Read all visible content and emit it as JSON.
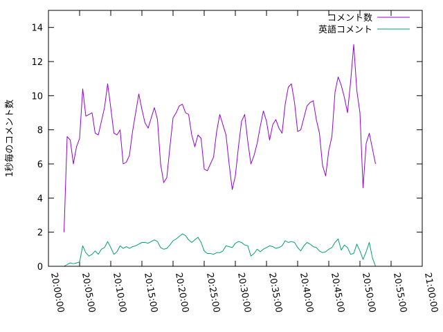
{
  "chart_data": {
    "type": "line",
    "title": "",
    "xlabel": "",
    "ylabel": "1秒毎のコメント数",
    "ylim": [
      0,
      15
    ],
    "xlim": [
      "20:00:00",
      "21:00:00"
    ],
    "yticks": [
      0,
      2,
      4,
      6,
      8,
      10,
      12,
      14
    ],
    "xticks": [
      "20:00:00",
      "20:05:00",
      "20:10:00",
      "20:15:00",
      "20:20:00",
      "20:25:00",
      "20:30:00",
      "20:35:00",
      "20:40:00",
      "20:45:00",
      "20:50:00",
      "20:55:00",
      "21:00:00"
    ],
    "grid": false,
    "legend_position": "top-right",
    "series": [
      {
        "name": "コメント数",
        "color": "#9400d3",
        "points": [
          [
            "20:02:30",
            2.0
          ],
          [
            "20:03:00",
            7.6
          ],
          [
            "20:03:30",
            7.4
          ],
          [
            "20:04:00",
            6.0
          ],
          [
            "20:04:30",
            7.0
          ],
          [
            "20:05:00",
            7.5
          ],
          [
            "20:05:30",
            10.4
          ],
          [
            "20:06:00",
            8.8
          ],
          [
            "20:06:30",
            8.9
          ],
          [
            "20:07:00",
            9.0
          ],
          [
            "20:07:30",
            7.8
          ],
          [
            "20:08:00",
            7.7
          ],
          [
            "20:08:30",
            8.5
          ],
          [
            "20:09:00",
            9.3
          ],
          [
            "20:09:30",
            10.7
          ],
          [
            "20:10:00",
            9.3
          ],
          [
            "20:10:30",
            7.8
          ],
          [
            "20:11:00",
            7.7
          ],
          [
            "20:11:30",
            8.0
          ],
          [
            "20:12:00",
            6.0
          ],
          [
            "20:12:30",
            6.1
          ],
          [
            "20:13:00",
            6.5
          ],
          [
            "20:13:30",
            7.9
          ],
          [
            "20:14:00",
            9.0
          ],
          [
            "20:14:30",
            10.1
          ],
          [
            "20:15:00",
            9.2
          ],
          [
            "20:15:30",
            8.4
          ],
          [
            "20:16:00",
            8.1
          ],
          [
            "20:16:30",
            8.7
          ],
          [
            "20:17:00",
            9.3
          ],
          [
            "20:17:30",
            8.6
          ],
          [
            "20:18:00",
            6.0
          ],
          [
            "20:18:30",
            4.9
          ],
          [
            "20:19:00",
            5.2
          ],
          [
            "20:19:30",
            7.0
          ],
          [
            "20:20:00",
            8.7
          ],
          [
            "20:20:30",
            9.0
          ],
          [
            "20:21:00",
            9.4
          ],
          [
            "20:21:30",
            9.5
          ],
          [
            "20:22:00",
            9.0
          ],
          [
            "20:22:30",
            8.9
          ],
          [
            "20:23:00",
            7.7
          ],
          [
            "20:23:30",
            7.0
          ],
          [
            "20:24:00",
            7.7
          ],
          [
            "20:24:30",
            7.5
          ],
          [
            "20:25:00",
            5.7
          ],
          [
            "20:25:30",
            5.6
          ],
          [
            "20:26:00",
            6.0
          ],
          [
            "20:26:30",
            6.4
          ],
          [
            "20:27:00",
            7.9
          ],
          [
            "20:27:30",
            8.9
          ],
          [
            "20:28:00",
            8.3
          ],
          [
            "20:28:30",
            7.7
          ],
          [
            "20:29:00",
            6.0
          ],
          [
            "20:29:30",
            4.5
          ],
          [
            "20:30:00",
            5.3
          ],
          [
            "20:30:30",
            7.0
          ],
          [
            "20:31:00",
            8.5
          ],
          [
            "20:31:30",
            8.9
          ],
          [
            "20:32:00",
            7.3
          ],
          [
            "20:32:30",
            6.0
          ],
          [
            "20:33:00",
            6.5
          ],
          [
            "20:33:30",
            7.2
          ],
          [
            "20:34:00",
            8.2
          ],
          [
            "20:34:30",
            9.1
          ],
          [
            "20:35:00",
            8.5
          ],
          [
            "20:35:30",
            7.4
          ],
          [
            "20:36:00",
            8.3
          ],
          [
            "20:36:30",
            8.6
          ],
          [
            "20:37:00",
            8.1
          ],
          [
            "20:37:30",
            7.8
          ],
          [
            "20:38:00",
            9.5
          ],
          [
            "20:38:30",
            10.5
          ],
          [
            "20:39:00",
            10.7
          ],
          [
            "20:39:30",
            9.6
          ],
          [
            "20:40:00",
            7.9
          ],
          [
            "20:40:30",
            8.0
          ],
          [
            "20:41:00",
            8.7
          ],
          [
            "20:41:30",
            9.4
          ],
          [
            "20:42:00",
            9.6
          ],
          [
            "20:42:30",
            9.7
          ],
          [
            "20:43:00",
            8.6
          ],
          [
            "20:43:30",
            7.8
          ],
          [
            "20:44:00",
            5.9
          ],
          [
            "20:44:30",
            5.3
          ],
          [
            "20:45:00",
            6.8
          ],
          [
            "20:45:30",
            7.6
          ],
          [
            "20:46:00",
            10.2
          ],
          [
            "20:46:30",
            11.1
          ],
          [
            "20:47:00",
            10.6
          ],
          [
            "20:47:30",
            9.9
          ],
          [
            "20:48:00",
            9.0
          ],
          [
            "20:48:30",
            10.8
          ],
          [
            "20:49:00",
            13.0
          ],
          [
            "20:49:30",
            10.3
          ],
          [
            "20:50:00",
            9.0
          ],
          [
            "20:50:30",
            4.6
          ],
          [
            "20:51:00",
            7.2
          ],
          [
            "20:51:30",
            7.8
          ],
          [
            "20:52:00",
            6.9
          ],
          [
            "20:52:30",
            6.0
          ]
        ]
      },
      {
        "name": "英語コメント",
        "color": "#009e73",
        "points": [
          [
            "20:02:30",
            0.0
          ],
          [
            "20:03:00",
            0.1
          ],
          [
            "20:03:30",
            0.2
          ],
          [
            "20:04:00",
            0.15
          ],
          [
            "20:04:30",
            0.2
          ],
          [
            "20:05:00",
            0.25
          ],
          [
            "20:05:30",
            1.2
          ],
          [
            "20:06:00",
            0.8
          ],
          [
            "20:06:30",
            0.6
          ],
          [
            "20:07:00",
            0.7
          ],
          [
            "20:07:30",
            0.9
          ],
          [
            "20:08:00",
            0.7
          ],
          [
            "20:08:30",
            1.0
          ],
          [
            "20:09:00",
            1.1
          ],
          [
            "20:09:30",
            1.45
          ],
          [
            "20:10:00",
            1.1
          ],
          [
            "20:10:30",
            0.7
          ],
          [
            "20:11:00",
            0.85
          ],
          [
            "20:11:30",
            1.2
          ],
          [
            "20:12:00",
            1.05
          ],
          [
            "20:12:30",
            1.15
          ],
          [
            "20:13:00",
            1.05
          ],
          [
            "20:13:30",
            1.15
          ],
          [
            "20:14:00",
            1.2
          ],
          [
            "20:14:30",
            1.3
          ],
          [
            "20:15:00",
            1.4
          ],
          [
            "20:15:30",
            1.4
          ],
          [
            "20:16:00",
            1.35
          ],
          [
            "20:16:30",
            1.45
          ],
          [
            "20:17:00",
            1.55
          ],
          [
            "20:17:30",
            1.45
          ],
          [
            "20:18:00",
            1.1
          ],
          [
            "20:18:30",
            1.0
          ],
          [
            "20:19:00",
            1.05
          ],
          [
            "20:19:30",
            1.25
          ],
          [
            "20:20:00",
            1.5
          ],
          [
            "20:20:30",
            1.6
          ],
          [
            "20:21:00",
            1.75
          ],
          [
            "20:21:30",
            1.9
          ],
          [
            "20:22:00",
            1.8
          ],
          [
            "20:22:30",
            1.55
          ],
          [
            "20:23:00",
            1.4
          ],
          [
            "20:23:30",
            1.55
          ],
          [
            "20:24:00",
            1.7
          ],
          [
            "20:24:30",
            1.4
          ],
          [
            "20:25:00",
            0.9
          ],
          [
            "20:25:30",
            0.75
          ],
          [
            "20:26:00",
            0.75
          ],
          [
            "20:26:30",
            0.7
          ],
          [
            "20:27:00",
            0.8
          ],
          [
            "20:27:30",
            0.8
          ],
          [
            "20:28:00",
            0.9
          ],
          [
            "20:28:30",
            1.2
          ],
          [
            "20:29:00",
            1.15
          ],
          [
            "20:29:30",
            1.1
          ],
          [
            "20:30:00",
            1.35
          ],
          [
            "20:30:30",
            1.45
          ],
          [
            "20:31:00",
            1.4
          ],
          [
            "20:31:30",
            1.25
          ],
          [
            "20:32:00",
            1.2
          ],
          [
            "20:32:30",
            0.6
          ],
          [
            "20:33:00",
            0.75
          ],
          [
            "20:33:30",
            1.0
          ],
          [
            "20:34:00",
            0.85
          ],
          [
            "20:34:30",
            1.0
          ],
          [
            "20:35:00",
            1.1
          ],
          [
            "20:35:30",
            1.2
          ],
          [
            "20:36:00",
            1.15
          ],
          [
            "20:36:30",
            1.05
          ],
          [
            "20:37:00",
            1.1
          ],
          [
            "20:37:30",
            1.2
          ],
          [
            "20:38:00",
            1.5
          ],
          [
            "20:38:30",
            1.4
          ],
          [
            "20:39:00",
            1.45
          ],
          [
            "20:39:30",
            1.4
          ],
          [
            "20:40:00",
            1.1
          ],
          [
            "20:40:30",
            0.9
          ],
          [
            "20:41:00",
            1.2
          ],
          [
            "20:41:30",
            1.4
          ],
          [
            "20:42:00",
            1.3
          ],
          [
            "20:42:30",
            1.15
          ],
          [
            "20:43:00",
            1.1
          ],
          [
            "20:43:30",
            0.9
          ],
          [
            "20:44:00",
            0.8
          ],
          [
            "20:44:30",
            0.85
          ],
          [
            "20:45:00",
            1.0
          ],
          [
            "20:45:30",
            1.1
          ],
          [
            "20:46:00",
            1.4
          ],
          [
            "20:46:30",
            1.6
          ],
          [
            "20:47:00",
            0.95
          ],
          [
            "20:47:30",
            1.25
          ],
          [
            "20:48:00",
            1.1
          ],
          [
            "20:48:30",
            0.7
          ],
          [
            "20:49:00",
            0.75
          ],
          [
            "20:49:30",
            1.3
          ],
          [
            "20:50:00",
            0.9
          ],
          [
            "20:50:30",
            0.4
          ],
          [
            "20:51:00",
            0.85
          ],
          [
            "20:51:30",
            1.4
          ],
          [
            "20:52:00",
            0.5
          ],
          [
            "20:52:30",
            0.0
          ]
        ]
      }
    ]
  }
}
